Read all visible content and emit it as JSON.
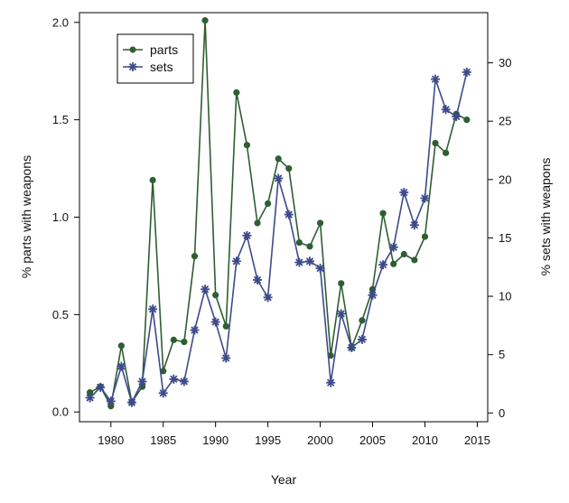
{
  "chart_data": {
    "type": "line",
    "xlabel": "Year",
    "ylabel_left": "% parts with weapons",
    "ylabel_right": "% sets with weapons",
    "xlim": [
      1977,
      2016
    ],
    "ylim_left": [
      -0.05,
      2.05
    ],
    "ylim_right": [
      -0.75,
      34.3
    ],
    "x_ticks": [
      "1980",
      "1985",
      "1990",
      "1995",
      "2000",
      "2005",
      "2010",
      "2015"
    ],
    "y_ticks_left": [
      "0.0",
      "0.5",
      "1.0",
      "1.5",
      "2.0"
    ],
    "y_ticks_right": [
      "0",
      "5",
      "10",
      "15",
      "20",
      "25",
      "30"
    ],
    "legend_position": "top-left",
    "grid": false,
    "series": [
      {
        "name": "parts",
        "axis": "left",
        "color": "#2e5e32",
        "marker": "circle",
        "x": [
          1978,
          1979,
          1980,
          1981,
          1982,
          1983,
          1984,
          1985,
          1986,
          1987,
          1988,
          1989,
          1990,
          1991,
          1992,
          1993,
          1994,
          1995,
          1996,
          1997,
          1998,
          1999,
          2000,
          2001,
          2002,
          2003,
          2004,
          2005,
          2006,
          2007,
          2008,
          2009,
          2010,
          2011,
          2012,
          2013,
          2014
        ],
        "values": [
          0.1,
          0.13,
          0.03,
          0.34,
          0.05,
          0.13,
          1.19,
          0.21,
          0.37,
          0.36,
          0.8,
          2.01,
          0.6,
          0.44,
          1.64,
          1.37,
          0.97,
          1.07,
          1.3,
          1.25,
          0.87,
          0.85,
          0.97,
          0.29,
          0.66,
          0.33,
          0.47,
          0.63,
          1.02,
          0.76,
          0.81,
          0.78,
          0.9,
          1.38,
          1.33,
          1.53,
          1.5
        ]
      },
      {
        "name": "sets",
        "axis": "right",
        "color": "#3d4a8a",
        "marker": "asterisk",
        "x": [
          1978,
          1979,
          1980,
          1981,
          1982,
          1983,
          1984,
          1985,
          1986,
          1987,
          1988,
          1989,
          1990,
          1991,
          1992,
          1993,
          1994,
          1995,
          1996,
          1997,
          1998,
          1999,
          2000,
          2001,
          2002,
          2003,
          2004,
          2005,
          2006,
          2007,
          2008,
          2009,
          2010,
          2011,
          2012,
          2013,
          2014
        ],
        "values": [
          1.3,
          2.2,
          1.0,
          4.0,
          0.9,
          2.7,
          8.9,
          1.7,
          2.9,
          2.7,
          7.1,
          10.6,
          7.8,
          4.7,
          13.0,
          15.2,
          11.4,
          9.9,
          20.1,
          17.0,
          12.9,
          13.0,
          12.4,
          2.6,
          8.5,
          5.6,
          6.3,
          10.1,
          12.7,
          14.2,
          18.9,
          16.1,
          18.4,
          28.6,
          26.0,
          25.4,
          29.2
        ]
      }
    ]
  }
}
